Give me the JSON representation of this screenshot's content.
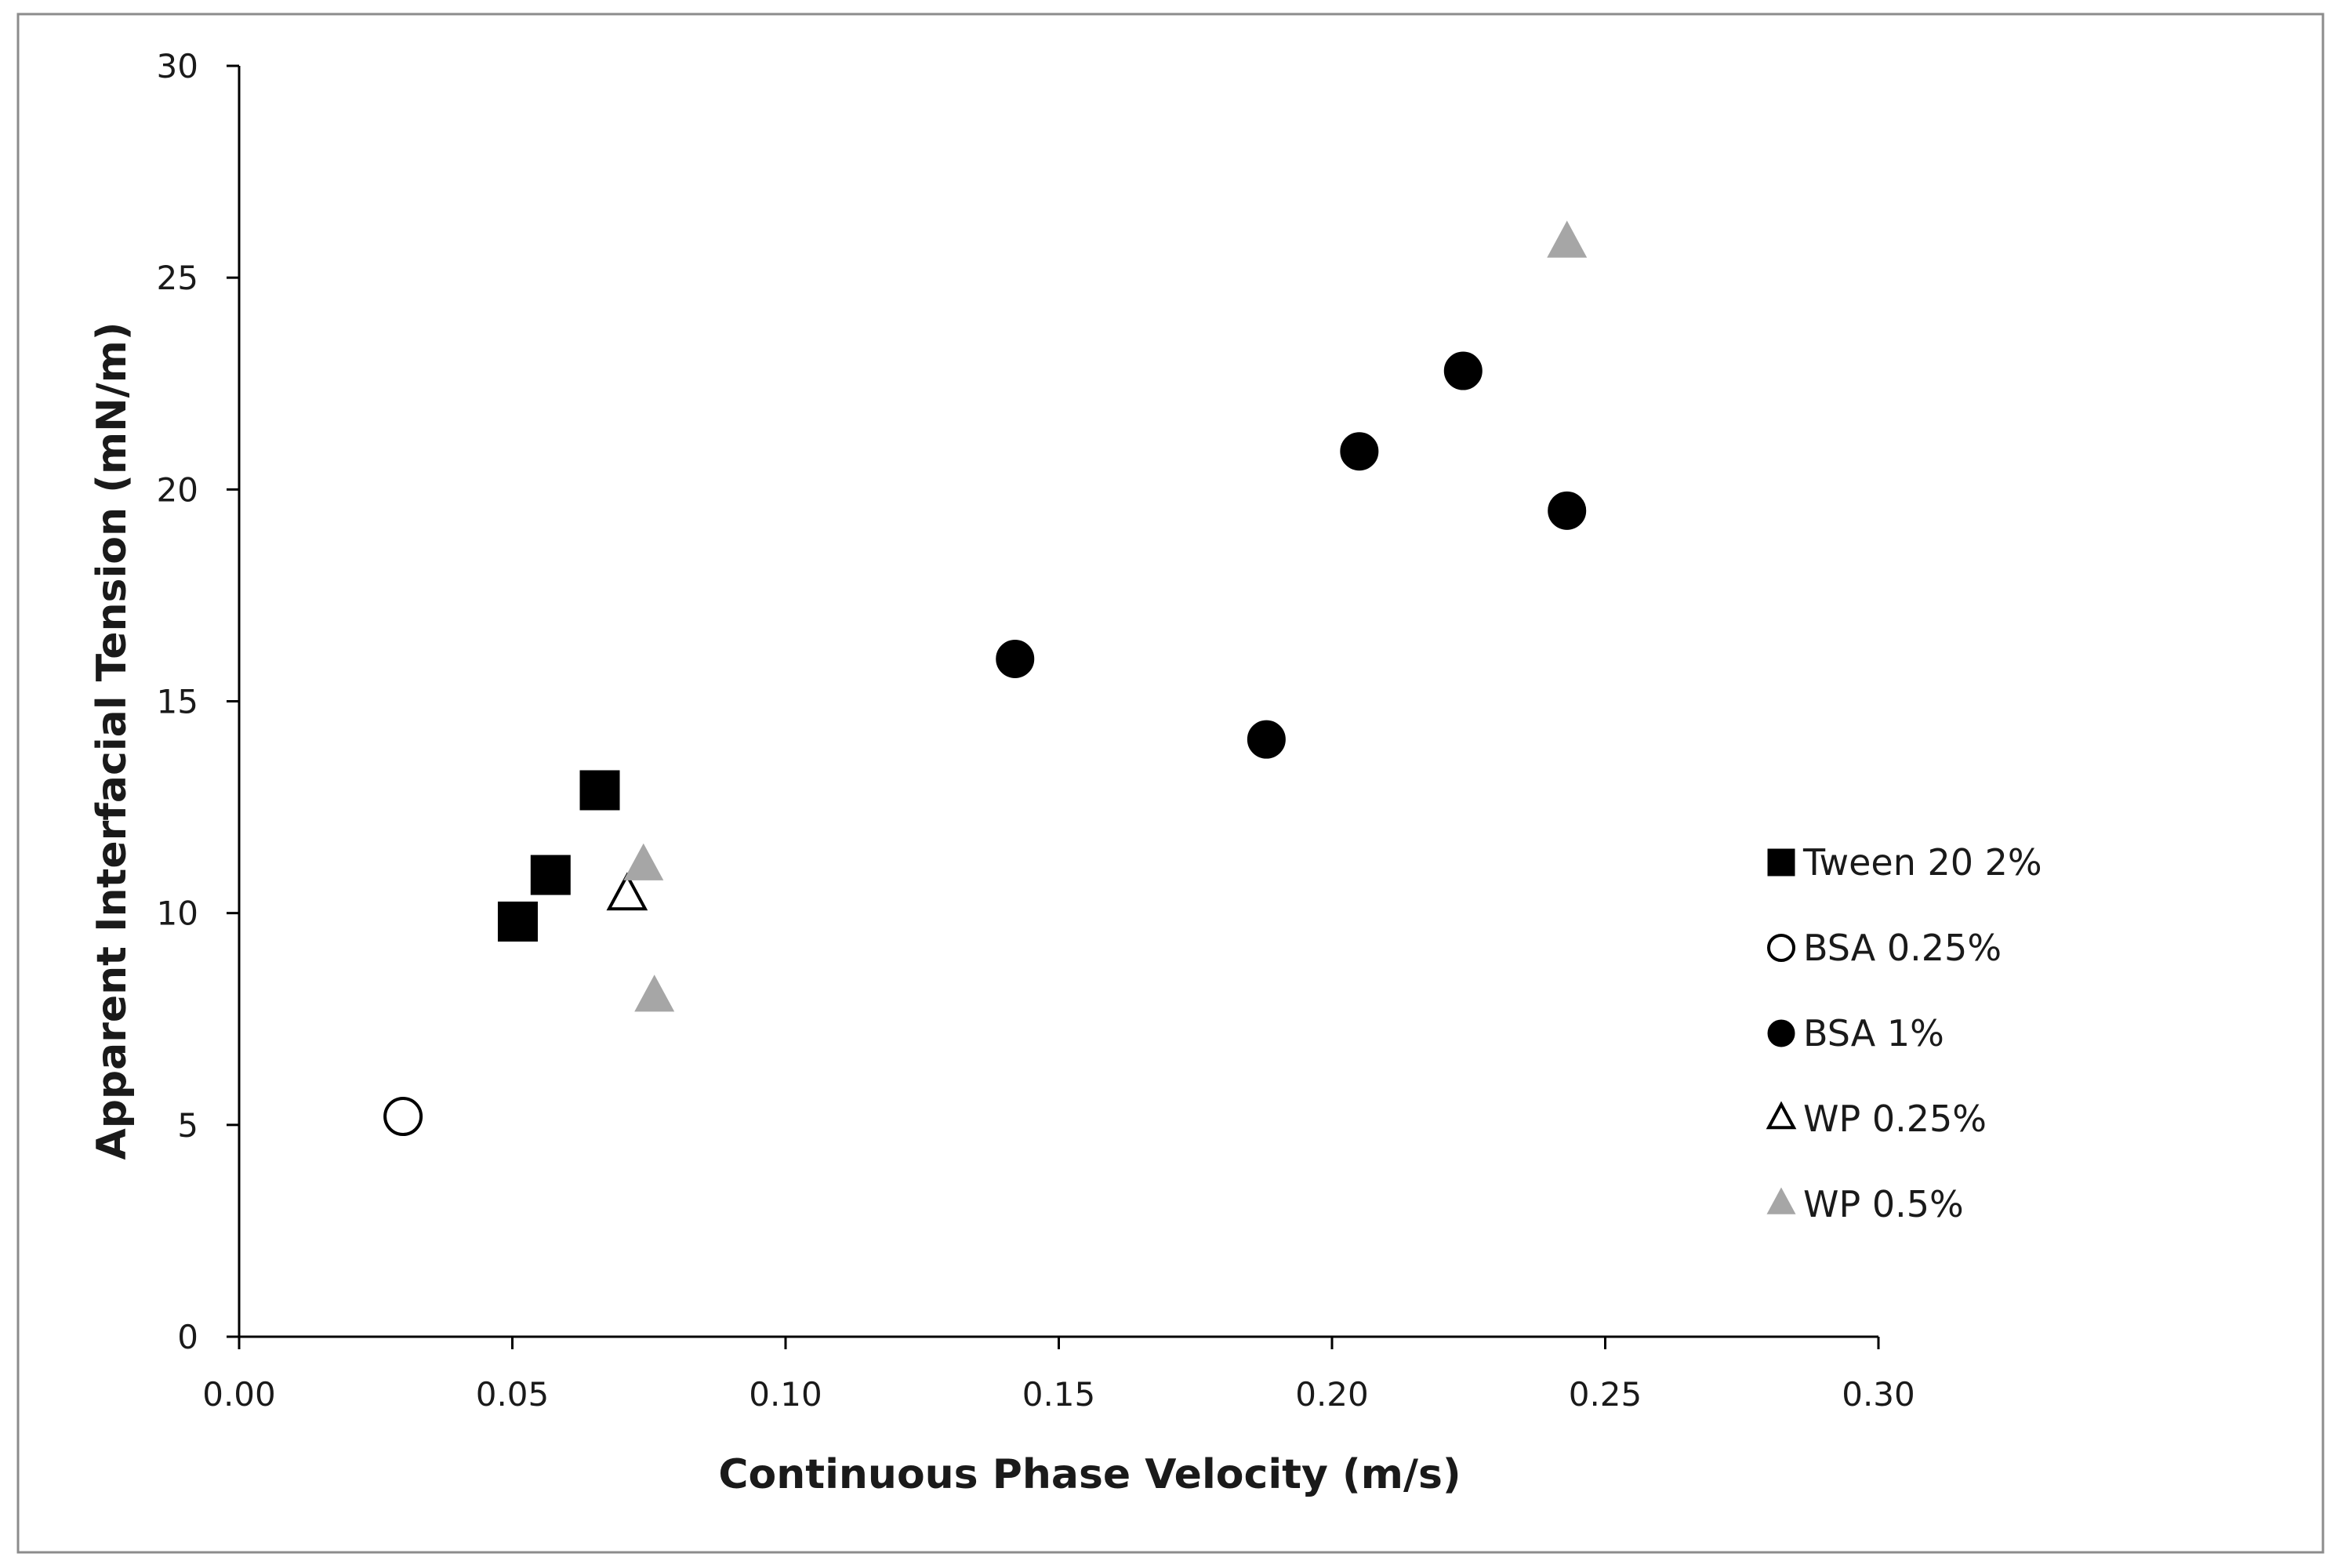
{
  "chart_data": {
    "type": "scatter",
    "title": "",
    "xlabel": "Continuous Phase Velocity (m/s)",
    "ylabel": "Apparent Interfacial Tension (mN/m)",
    "xlim": [
      0,
      0.3
    ],
    "ylim": [
      0,
      30
    ],
    "xticks": [
      "0.00",
      "0.05",
      "0.10",
      "0.15",
      "0.20",
      "0.25",
      "0.30"
    ],
    "yticks": [
      "0",
      "5",
      "10",
      "15",
      "20",
      "25",
      "30"
    ],
    "grid": false,
    "legend_position": "right",
    "series": [
      {
        "name": "Tween 20 2%",
        "marker": "square",
        "fill": "#000000",
        "stroke": "#000000",
        "points": [
          [
            0.051,
            9.8
          ],
          [
            0.057,
            10.9
          ],
          [
            0.066,
            12.9
          ]
        ]
      },
      {
        "name": "BSA 0.25%",
        "marker": "circle",
        "fill": "#ffffff",
        "stroke": "#000000",
        "points": [
          [
            0.03,
            5.2
          ]
        ]
      },
      {
        "name": "BSA 1%",
        "marker": "circle",
        "fill": "#000000",
        "stroke": "#000000",
        "points": [
          [
            0.142,
            16.0
          ],
          [
            0.188,
            14.1
          ],
          [
            0.205,
            20.9
          ],
          [
            0.224,
            22.8
          ],
          [
            0.243,
            19.5
          ]
        ]
      },
      {
        "name": "WP 0.25%",
        "marker": "triangle",
        "fill": "#ffffff",
        "stroke": "#000000",
        "points": [
          [
            0.071,
            10.4
          ]
        ]
      },
      {
        "name": "WP 0.5%",
        "marker": "triangle",
        "fill": "#a6a6a6",
        "stroke": "#a6a6a6",
        "points": [
          [
            0.074,
            11.1
          ],
          [
            0.076,
            8.0
          ],
          [
            0.243,
            25.8
          ]
        ]
      }
    ]
  }
}
